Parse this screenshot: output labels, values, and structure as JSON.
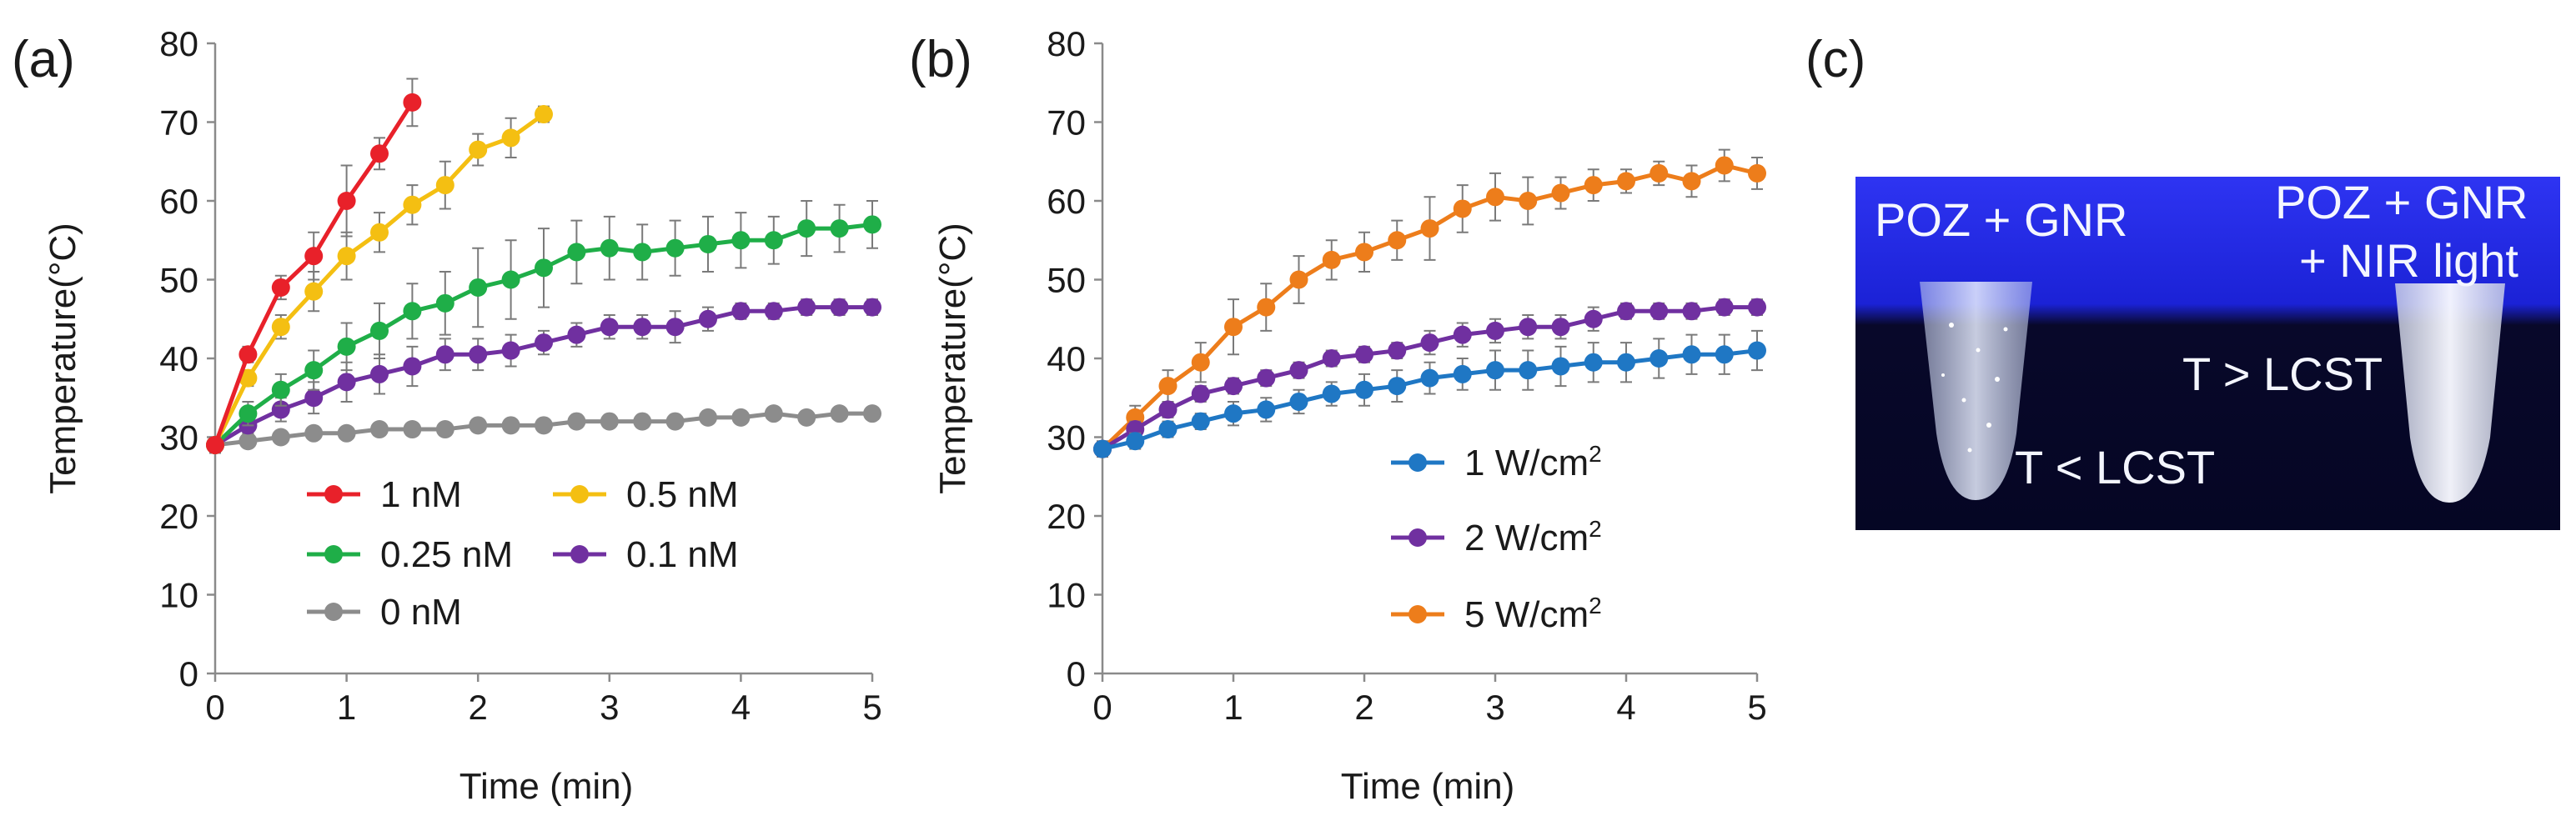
{
  "chart_data": [
    {
      "type": "line",
      "panel_label": "(a)",
      "xlabel": "Time (min)",
      "ylabel": "Temperature(°C)",
      "xlim": [
        0,
        5
      ],
      "ylim": [
        0,
        80
      ],
      "xticks": [
        "0",
        "1",
        "2",
        "3",
        "4",
        "5"
      ],
      "yticks": [
        "0",
        "10",
        "20",
        "30",
        "40",
        "50",
        "60",
        "70",
        "80"
      ],
      "grid": false,
      "legend_position": "bottom-right",
      "series": [
        {
          "name": "1 nM",
          "color": "#e8212a",
          "x": [
            0,
            0.25,
            0.5,
            0.75,
            1,
            1.25,
            1.5
          ],
          "y": [
            29,
            40.5,
            49,
            53,
            60,
            66,
            72.5
          ],
          "err": [
            1,
            1,
            1.5,
            3,
            4.5,
            2,
            3
          ]
        },
        {
          "name": "0.5 nM",
          "color": "#f4bf12",
          "x": [
            0,
            0.25,
            0.5,
            0.75,
            1,
            1.25,
            1.5,
            1.75,
            2,
            2.25,
            2.5
          ],
          "y": [
            29,
            37.5,
            44,
            48.5,
            53,
            56,
            59.5,
            62,
            66.5,
            68,
            71
          ],
          "err": [
            1,
            1,
            1.5,
            2.5,
            3,
            2.5,
            2.5,
            3,
            2,
            2.5,
            1
          ]
        },
        {
          "name": "0.25 nM",
          "color": "#1fae48",
          "x": [
            0,
            0.25,
            0.5,
            0.75,
            1,
            1.25,
            1.5,
            1.75,
            2,
            2.25,
            2.5,
            2.75,
            3,
            3.25,
            3.5,
            3.75,
            4,
            4.25,
            4.5,
            4.75,
            5
          ],
          "y": [
            29,
            33,
            36,
            38.5,
            41.5,
            43.5,
            46,
            47,
            49,
            50,
            51.5,
            53.5,
            54,
            53.5,
            54,
            54.5,
            55,
            55,
            56.5,
            56.5,
            57
          ],
          "err": [
            1,
            1.5,
            2,
            2.5,
            3,
            3.5,
            3.5,
            4,
            5,
            5,
            5,
            4,
            4,
            3.5,
            3.5,
            3.5,
            3.5,
            3,
            3.5,
            3,
            3
          ]
        },
        {
          "name": "0.1 nM",
          "color": "#7030a0",
          "x": [
            0,
            0.25,
            0.5,
            0.75,
            1,
            1.25,
            1.5,
            1.75,
            2,
            2.25,
            2.5,
            2.75,
            3,
            3.25,
            3.5,
            3.75,
            4,
            4.25,
            4.5,
            4.75,
            5
          ],
          "y": [
            29,
            31.5,
            33.5,
            35,
            37,
            38,
            39,
            40.5,
            40.5,
            41,
            42,
            43,
            44,
            44,
            44,
            45,
            46,
            46,
            46.5,
            46.5,
            46.5
          ],
          "err": [
            1,
            1,
            1.5,
            2,
            2.5,
            2.5,
            2.5,
            2,
            2,
            2,
            1.5,
            1.5,
            1.5,
            1.5,
            2,
            1.5,
            1,
            1,
            1,
            1,
            1
          ]
        },
        {
          "name": "0 nM",
          "color": "#8c8c8c",
          "x": [
            0,
            0.25,
            0.5,
            0.75,
            1,
            1.25,
            1.5,
            1.75,
            2,
            2.25,
            2.5,
            2.75,
            3,
            3.25,
            3.5,
            3.75,
            4,
            4.25,
            4.5,
            4.75,
            5
          ],
          "y": [
            29,
            29.5,
            30,
            30.5,
            30.5,
            31,
            31,
            31,
            31.5,
            31.5,
            31.5,
            32,
            32,
            32,
            32,
            32.5,
            32.5,
            33,
            32.5,
            33,
            33
          ],
          "err": [
            0.5,
            0.5,
            0.5,
            0.5,
            0.5,
            0.5,
            0.5,
            0.5,
            0.5,
            0.5,
            0.5,
            0.5,
            0.5,
            0.5,
            0.5,
            0.5,
            0.5,
            0.5,
            0.5,
            0.5,
            0.5
          ]
        }
      ]
    },
    {
      "type": "line",
      "panel_label": "(b)",
      "xlabel": "Time (min)",
      "ylabel": "Temperature(°C)",
      "xlim": [
        0,
        5
      ],
      "ylim": [
        0,
        80
      ],
      "xticks": [
        "0",
        "1",
        "2",
        "3",
        "4",
        "5"
      ],
      "yticks": [
        "0",
        "10",
        "20",
        "30",
        "40",
        "50",
        "60",
        "70",
        "80"
      ],
      "grid": false,
      "legend_position": "bottom-right",
      "series": [
        {
          "name": "1 W/cm",
          "superscript": "2",
          "color": "#1f77c4",
          "x": [
            0,
            0.25,
            0.5,
            0.75,
            1,
            1.25,
            1.5,
            1.75,
            2,
            2.25,
            2.5,
            2.75,
            3,
            3.25,
            3.5,
            3.75,
            4,
            4.25,
            4.5,
            4.75,
            5
          ],
          "y": [
            28.5,
            29.5,
            31,
            32,
            33,
            33.5,
            34.5,
            35.5,
            36,
            36.5,
            37.5,
            38,
            38.5,
            38.5,
            39,
            39.5,
            39.5,
            40,
            40.5,
            40.5,
            41
          ],
          "err": [
            0.5,
            1,
            1,
            1,
            1.5,
            1.5,
            1.5,
            1.5,
            2,
            2,
            2,
            2,
            2.5,
            2.5,
            2.5,
            2.5,
            2.5,
            2.5,
            2.5,
            2.5,
            2.5
          ]
        },
        {
          "name": "2 W/cm",
          "superscript": "2",
          "color": "#7030a0",
          "x": [
            0,
            0.25,
            0.5,
            0.75,
            1,
            1.25,
            1.5,
            1.75,
            2,
            2.25,
            2.5,
            2.75,
            3,
            3.25,
            3.5,
            3.75,
            4,
            4.25,
            4.5,
            4.75,
            5
          ],
          "y": [
            28.5,
            31,
            33.5,
            35.5,
            36.5,
            37.5,
            38.5,
            40,
            40.5,
            41,
            42,
            43,
            43.5,
            44,
            44,
            45,
            46,
            46,
            46,
            46.5,
            46.5
          ],
          "err": [
            0.5,
            1,
            1,
            1,
            1,
            1,
            1,
            1,
            1,
            1,
            1.5,
            1.5,
            1.5,
            1.5,
            1.5,
            1.5,
            1,
            1,
            1,
            1,
            1
          ]
        },
        {
          "name": "5 W/cm",
          "superscript": "2",
          "color": "#ed7d1b",
          "x": [
            0,
            0.25,
            0.5,
            0.75,
            1,
            1.25,
            1.5,
            1.75,
            2,
            2.25,
            2.5,
            2.75,
            3,
            3.25,
            3.5,
            3.75,
            4,
            4.25,
            4.5,
            4.75,
            5
          ],
          "y": [
            28.5,
            32.5,
            36.5,
            39.5,
            44,
            46.5,
            50,
            52.5,
            53.5,
            55,
            56.5,
            59,
            60.5,
            60,
            61,
            62,
            62.5,
            63.5,
            62.5,
            64.5,
            63.5
          ],
          "err": [
            1,
            1.5,
            2,
            2.5,
            3.5,
            3,
            3,
            2.5,
            2.5,
            2.5,
            4,
            3,
            3,
            3,
            2,
            2,
            1.5,
            1.5,
            2,
            2,
            2
          ]
        }
      ]
    }
  ],
  "photo_panel": {
    "panel_label": "(c)",
    "left_label": "POZ + GNR",
    "right_label_line1": "POZ + GNR",
    "right_label_line2": "+ NIR light",
    "left_tube_label": "T < LCST",
    "right_tube_label": "T > LCST"
  }
}
